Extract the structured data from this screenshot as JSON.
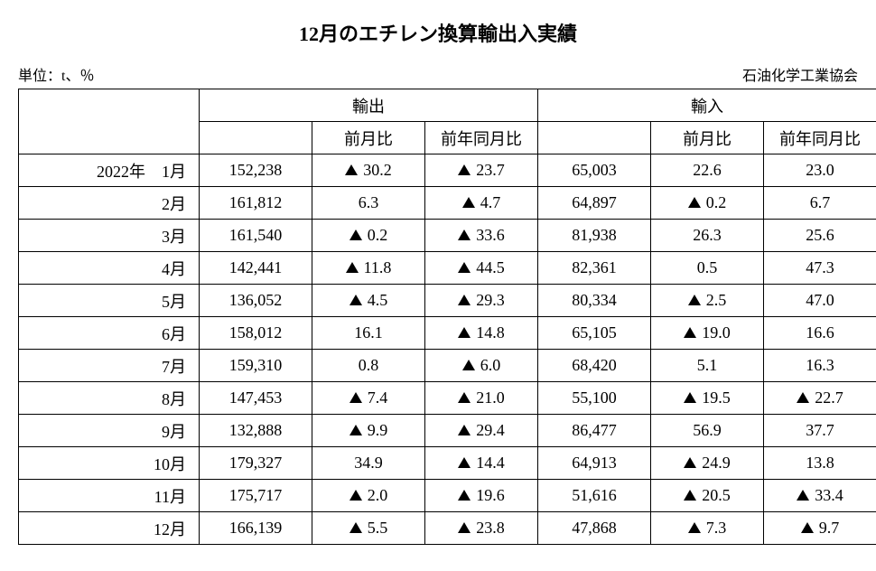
{
  "title": "12月のエチレン換算輸出入実績",
  "unit_label": "単位：t、％",
  "source_label": "石油化学工業協会",
  "table": {
    "type": "table",
    "group_headers": {
      "export": "輸出",
      "import": "輸入"
    },
    "sub_headers": {
      "mom": "前月比",
      "yoy": "前年同月比"
    },
    "background_color": "#ffffff",
    "border_color": "#000000",
    "text_color": "#000000",
    "font_size_pt": 14,
    "rows": [
      {
        "period": "2022年　1月",
        "exp_val": "152,238",
        "exp_mom": "30.2",
        "exp_mom_neg": true,
        "exp_yoy": "23.7",
        "exp_yoy_neg": true,
        "imp_val": "65,003",
        "imp_mom": "22.6",
        "imp_mom_neg": false,
        "imp_yoy": "23.0",
        "imp_yoy_neg": false
      },
      {
        "period": "2月",
        "exp_val": "161,812",
        "exp_mom": "6.3",
        "exp_mom_neg": false,
        "exp_yoy": "4.7",
        "exp_yoy_neg": true,
        "imp_val": "64,897",
        "imp_mom": "0.2",
        "imp_mom_neg": true,
        "imp_yoy": "6.7",
        "imp_yoy_neg": false
      },
      {
        "period": "3月",
        "exp_val": "161,540",
        "exp_mom": "0.2",
        "exp_mom_neg": true,
        "exp_yoy": "33.6",
        "exp_yoy_neg": true,
        "imp_val": "81,938",
        "imp_mom": "26.3",
        "imp_mom_neg": false,
        "imp_yoy": "25.6",
        "imp_yoy_neg": false
      },
      {
        "period": "4月",
        "exp_val": "142,441",
        "exp_mom": "11.8",
        "exp_mom_neg": true,
        "exp_yoy": "44.5",
        "exp_yoy_neg": true,
        "imp_val": "82,361",
        "imp_mom": "0.5",
        "imp_mom_neg": false,
        "imp_yoy": "47.3",
        "imp_yoy_neg": false
      },
      {
        "period": "5月",
        "exp_val": "136,052",
        "exp_mom": "4.5",
        "exp_mom_neg": true,
        "exp_yoy": "29.3",
        "exp_yoy_neg": true,
        "imp_val": "80,334",
        "imp_mom": "2.5",
        "imp_mom_neg": true,
        "imp_yoy": "47.0",
        "imp_yoy_neg": false
      },
      {
        "period": "6月",
        "exp_val": "158,012",
        "exp_mom": "16.1",
        "exp_mom_neg": false,
        "exp_yoy": "14.8",
        "exp_yoy_neg": true,
        "imp_val": "65,105",
        "imp_mom": "19.0",
        "imp_mom_neg": true,
        "imp_yoy": "16.6",
        "imp_yoy_neg": false
      },
      {
        "period": "7月",
        "exp_val": "159,310",
        "exp_mom": "0.8",
        "exp_mom_neg": false,
        "exp_yoy": "6.0",
        "exp_yoy_neg": true,
        "imp_val": "68,420",
        "imp_mom": "5.1",
        "imp_mom_neg": false,
        "imp_yoy": "16.3",
        "imp_yoy_neg": false
      },
      {
        "period": "8月",
        "exp_val": "147,453",
        "exp_mom": "7.4",
        "exp_mom_neg": true,
        "exp_yoy": "21.0",
        "exp_yoy_neg": true,
        "imp_val": "55,100",
        "imp_mom": "19.5",
        "imp_mom_neg": true,
        "imp_yoy": "22.7",
        "imp_yoy_neg": true
      },
      {
        "period": "9月",
        "exp_val": "132,888",
        "exp_mom": "9.9",
        "exp_mom_neg": true,
        "exp_yoy": "29.4",
        "exp_yoy_neg": true,
        "imp_val": "86,477",
        "imp_mom": "56.9",
        "imp_mom_neg": false,
        "imp_yoy": "37.7",
        "imp_yoy_neg": false
      },
      {
        "period": "10月",
        "exp_val": "179,327",
        "exp_mom": "34.9",
        "exp_mom_neg": false,
        "exp_yoy": "14.4",
        "exp_yoy_neg": true,
        "imp_val": "64,913",
        "imp_mom": "24.9",
        "imp_mom_neg": true,
        "imp_yoy": "13.8",
        "imp_yoy_neg": false
      },
      {
        "period": "11月",
        "exp_val": "175,717",
        "exp_mom": "2.0",
        "exp_mom_neg": true,
        "exp_yoy": "19.6",
        "exp_yoy_neg": true,
        "imp_val": "51,616",
        "imp_mom": "20.5",
        "imp_mom_neg": true,
        "imp_yoy": "33.4",
        "imp_yoy_neg": true
      },
      {
        "period": "12月",
        "exp_val": "166,139",
        "exp_mom": "5.5",
        "exp_mom_neg": true,
        "exp_yoy": "23.8",
        "exp_yoy_neg": true,
        "imp_val": "47,868",
        "imp_mom": "7.3",
        "imp_mom_neg": true,
        "imp_yoy": "9.7",
        "imp_yoy_neg": true
      }
    ]
  }
}
